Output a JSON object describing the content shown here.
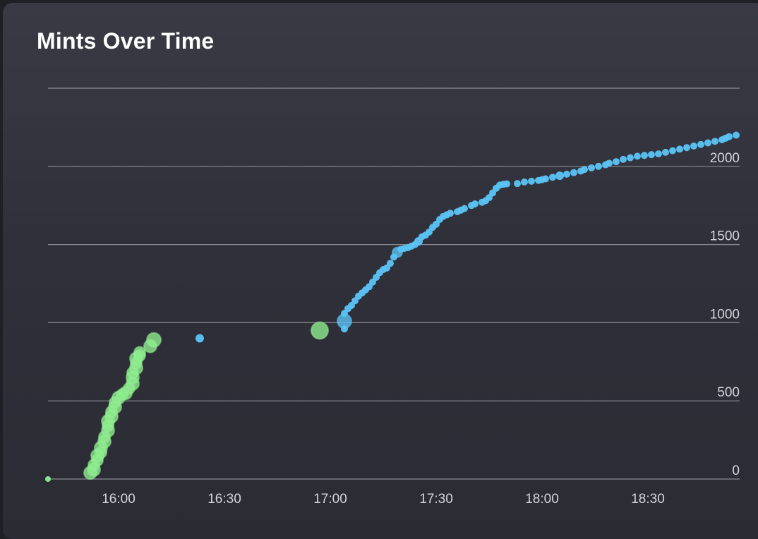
{
  "title": "Mints Over Time",
  "colors": {
    "presale": "#90ee90",
    "public": "#5bc4f5",
    "grid": "#8a8a92",
    "axis_text": "#d4d4dc"
  },
  "chart_data": {
    "type": "scatter",
    "title": "Mints Over Time",
    "xlabel": "",
    "ylabel": "",
    "x_ticks": [
      "16:00",
      "16:30",
      "17:00",
      "17:30",
      "18:00",
      "18:30"
    ],
    "y_ticks": [
      0,
      500,
      1000,
      1500,
      2000
    ],
    "xlim": [
      "15:40",
      "18:56"
    ],
    "ylim": [
      0,
      2500
    ],
    "grid": "horizontal",
    "y_axis_position": "right",
    "series": [
      {
        "color": "#90ee90",
        "points": [
          [
            "15:40",
            0,
            4
          ],
          [
            "15:52",
            40,
            9
          ],
          [
            "15:53",
            60,
            9
          ],
          [
            "15:53",
            90,
            8
          ],
          [
            "15:54",
            120,
            8
          ],
          [
            "15:54",
            150,
            9
          ],
          [
            "15:55",
            170,
            8
          ],
          [
            "15:55",
            200,
            9
          ],
          [
            "15:56",
            240,
            9
          ],
          [
            "15:56",
            270,
            8
          ],
          [
            "15:57",
            310,
            9
          ],
          [
            "15:57",
            340,
            8
          ],
          [
            "15:57",
            370,
            9
          ],
          [
            "15:58",
            400,
            9
          ],
          [
            "15:58",
            430,
            8
          ],
          [
            "15:59",
            460,
            9
          ],
          [
            "15:59",
            490,
            8
          ],
          [
            "16:00",
            520,
            9
          ],
          [
            "16:01",
            540,
            8
          ],
          [
            "16:02",
            550,
            9
          ],
          [
            "16:03",
            580,
            8
          ],
          [
            "16:04",
            610,
            9
          ],
          [
            "16:04",
            650,
            9
          ],
          [
            "16:04",
            680,
            8
          ],
          [
            "16:05",
            710,
            9
          ],
          [
            "16:05",
            740,
            8
          ],
          [
            "16:05",
            770,
            9
          ],
          [
            "16:06",
            790,
            8
          ],
          [
            "16:06",
            810,
            8
          ],
          [
            "16:09",
            850,
            9
          ],
          [
            "16:10",
            890,
            10
          ],
          [
            "16:57",
            950,
            12
          ]
        ]
      },
      {
        "color": "#5bc4f5",
        "points": [
          [
            "16:23",
            900,
            6
          ],
          [
            "17:04",
            960,
            5
          ],
          [
            "17:04",
            1010,
            10
          ],
          [
            "17:04",
            1060,
            5
          ],
          [
            "17:05",
            1090,
            5
          ],
          [
            "17:06",
            1110,
            5
          ],
          [
            "17:07",
            1140,
            5
          ],
          [
            "17:08",
            1170,
            5
          ],
          [
            "17:09",
            1190,
            5
          ],
          [
            "17:10",
            1210,
            5
          ],
          [
            "17:11",
            1230,
            5
          ],
          [
            "17:12",
            1260,
            5
          ],
          [
            "17:13",
            1290,
            5
          ],
          [
            "17:14",
            1320,
            5
          ],
          [
            "17:15",
            1340,
            5
          ],
          [
            "17:16",
            1350,
            5
          ],
          [
            "17:17",
            1380,
            5
          ],
          [
            "17:18",
            1420,
            5
          ],
          [
            "17:19",
            1450,
            7
          ],
          [
            "17:20",
            1470,
            5
          ],
          [
            "17:21",
            1475,
            5
          ],
          [
            "17:22",
            1480,
            5
          ],
          [
            "17:23",
            1490,
            5
          ],
          [
            "17:24",
            1500,
            5
          ],
          [
            "17:25",
            1520,
            6
          ],
          [
            "17:26",
            1550,
            5
          ],
          [
            "17:27",
            1560,
            5
          ],
          [
            "17:28",
            1580,
            5
          ],
          [
            "17:29",
            1610,
            5
          ],
          [
            "17:30",
            1630,
            5
          ],
          [
            "17:31",
            1660,
            5
          ],
          [
            "17:32",
            1680,
            5
          ],
          [
            "17:33",
            1690,
            5
          ],
          [
            "17:34",
            1700,
            5
          ],
          [
            "17:36",
            1710,
            5
          ],
          [
            "17:37",
            1720,
            5
          ],
          [
            "17:38",
            1730,
            5
          ],
          [
            "17:40",
            1750,
            5
          ],
          [
            "17:41",
            1760,
            5
          ],
          [
            "17:43",
            1770,
            5
          ],
          [
            "17:44",
            1780,
            5
          ],
          [
            "17:45",
            1800,
            5
          ],
          [
            "17:46",
            1830,
            5
          ],
          [
            "17:47",
            1860,
            5
          ],
          [
            "17:48",
            1880,
            5
          ],
          [
            "17:49",
            1885,
            5
          ],
          [
            "17:50",
            1888,
            5
          ],
          [
            "17:53",
            1890,
            5
          ],
          [
            "17:55",
            1900,
            5
          ],
          [
            "17:57",
            1905,
            5
          ],
          [
            "17:59",
            1910,
            5
          ],
          [
            "18:00",
            1915,
            5
          ],
          [
            "18:01",
            1920,
            5
          ],
          [
            "18:03",
            1930,
            5
          ],
          [
            "18:05",
            1940,
            6
          ],
          [
            "18:07",
            1950,
            5
          ],
          [
            "18:09",
            1960,
            5
          ],
          [
            "18:11",
            1970,
            5
          ],
          [
            "18:12",
            1980,
            5
          ],
          [
            "18:14",
            1990,
            5
          ],
          [
            "18:16",
            2000,
            5
          ],
          [
            "18:18",
            2010,
            5
          ],
          [
            "18:19",
            2020,
            5
          ],
          [
            "18:21",
            2030,
            5
          ],
          [
            "18:23",
            2045,
            5
          ],
          [
            "18:25",
            2055,
            5
          ],
          [
            "18:27",
            2065,
            5
          ],
          [
            "18:29",
            2070,
            5
          ],
          [
            "18:31",
            2075,
            5
          ],
          [
            "18:33",
            2080,
            5
          ],
          [
            "18:35",
            2090,
            5
          ],
          [
            "18:37",
            2100,
            5
          ],
          [
            "18:39",
            2110,
            5
          ],
          [
            "18:41",
            2120,
            5
          ],
          [
            "18:43",
            2130,
            5
          ],
          [
            "18:45",
            2140,
            5
          ],
          [
            "18:47",
            2150,
            5
          ],
          [
            "18:49",
            2160,
            5
          ],
          [
            "18:51",
            2170,
            5
          ],
          [
            "18:52",
            2180,
            5
          ],
          [
            "18:53",
            2190,
            5
          ],
          [
            "18:55",
            2200,
            5
          ]
        ]
      }
    ]
  }
}
